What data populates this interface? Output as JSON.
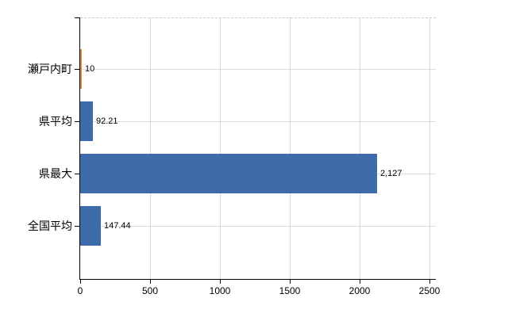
{
  "chart_data": {
    "type": "bar",
    "orientation": "horizontal",
    "title": "",
    "xlabel": "",
    "ylabel": "",
    "categories": [
      "瀬戸内町",
      "県平均",
      "県最大",
      "全国平均"
    ],
    "values": [
      10,
      92.21,
      2127,
      147.44
    ],
    "value_labels": [
      "10",
      "92.21",
      "2,127",
      "147.44"
    ],
    "bar_colors": [
      "#e0872f",
      "#3e6caa",
      "#3e6caa",
      "#3e6caa"
    ],
    "xlim": [
      0,
      2500
    ],
    "x_ticks": [
      "0",
      "500",
      "1000",
      "1500",
      "2000",
      "2500"
    ],
    "x_tick_values": [
      0,
      500,
      1000,
      1500,
      2000,
      2500
    ],
    "grid": true,
    "legend": false
  },
  "colors": {
    "bar_blue": "#3e6caa",
    "bar_orange": "#e0872f",
    "gridline": "#d9d9d9",
    "axis": "#000000",
    "text": "#000000",
    "background": "#ffffff"
  }
}
